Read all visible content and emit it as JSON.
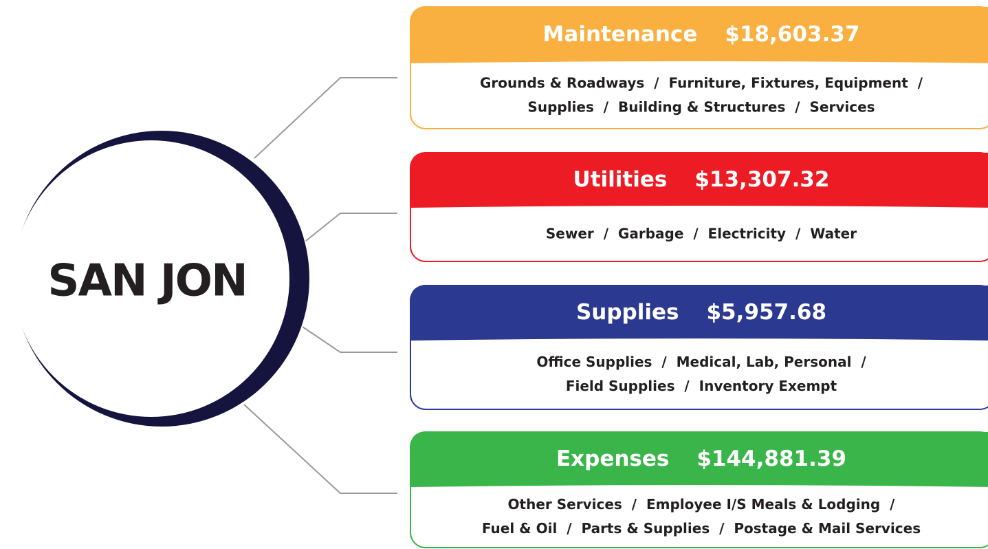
{
  "center": {
    "label": "SAN JON"
  },
  "cards": [
    {
      "title": "Maintenance",
      "amount": "$18,603.37",
      "color": "#f9b040",
      "lines": [
        "Grounds & Roadways  /  Furniture, Fixtures, Equipment  /",
        "Supplies  /  Building & Structures  /  Services"
      ]
    },
    {
      "title": "Utilities",
      "amount": "$13,307.32",
      "color": "#ed1c24",
      "lines": [
        "Sewer  /  Garbage  /  Electricity  /  Water"
      ]
    },
    {
      "title": "Supplies",
      "amount": "$5,957.68",
      "color": "#2b3990",
      "lines": [
        "Office Supplies  /  Medical, Lab, Personal  /",
        "Field Supplies  /  Inventory Exempt"
      ]
    },
    {
      "title": "Expenses",
      "amount": "$144,881.39",
      "color": "#39b54a",
      "lines": [
        "Other Services  /  Employee I/S Meals & Lodging  /",
        "Fuel & Oil  /  Parts & Supplies  /  Postage & Mail Services"
      ]
    }
  ]
}
